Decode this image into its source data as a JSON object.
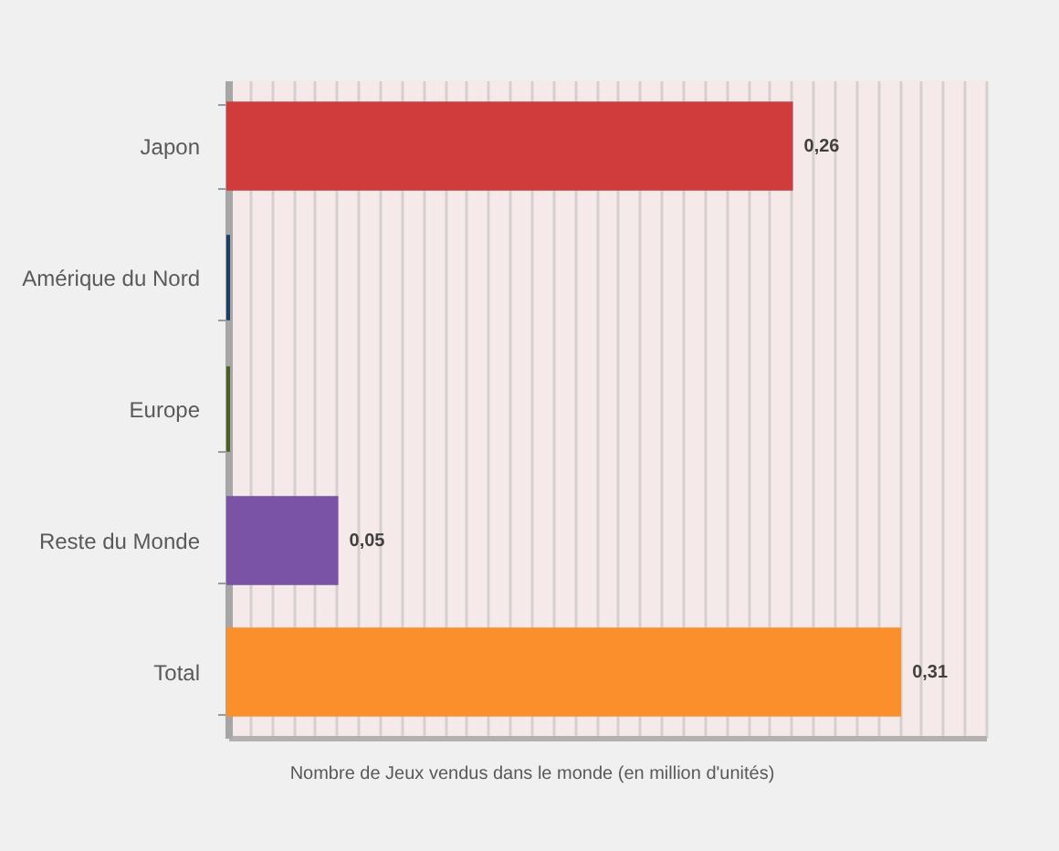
{
  "chart_data": {
    "type": "bar",
    "orientation": "horizontal",
    "categories": [
      "Japon",
      "Amérique du Nord",
      "Europe",
      "Reste du Monde",
      "Total"
    ],
    "values": [
      0.26,
      0,
      0,
      0.05,
      0.31
    ],
    "colors": [
      "#d03b3b",
      "#1c3d66",
      "#4a5f24",
      "#7a53a6",
      "#fb8f2b"
    ],
    "value_labels": [
      "0,26",
      null,
      null,
      "0,05",
      "0,31"
    ],
    "xlabel": "Nombre de Jeux vendus dans le monde (en million d'unités)",
    "xlim": [
      0,
      0.35
    ],
    "xticks": [
      {
        "value": 0,
        "label": null
      },
      {
        "value": 0.01,
        "label": null
      },
      {
        "value": 0.02,
        "label": null
      },
      {
        "value": 0.03,
        "label": null
      },
      {
        "value": 0.04,
        "label": null
      },
      {
        "value": 0.05,
        "label": null
      },
      {
        "value": 0.06,
        "label": null
      },
      {
        "value": 0.07,
        "label": null
      },
      {
        "value": 0.08,
        "label": null
      },
      {
        "value": 0.09,
        "label": null
      },
      {
        "value": 0.1,
        "label": null
      },
      {
        "value": 0.11,
        "label": null
      },
      {
        "value": 0.12,
        "label": null
      },
      {
        "value": 0.13,
        "label": null
      },
      {
        "value": 0.14,
        "label": null
      },
      {
        "value": 0.15,
        "label": null
      },
      {
        "value": 0.16,
        "label": null
      },
      {
        "value": 0.17,
        "label": null
      },
      {
        "value": 0.18,
        "label": null
      },
      {
        "value": 0.19,
        "label": null
      },
      {
        "value": 0.2,
        "label": null
      },
      {
        "value": 0.21,
        "label": null
      },
      {
        "value": 0.22,
        "label": null
      },
      {
        "value": 0.23,
        "label": null
      },
      {
        "value": 0.24,
        "label": null
      },
      {
        "value": 0.25,
        "label": null
      },
      {
        "value": 0.26,
        "label": null
      },
      {
        "value": 0.27,
        "label": null
      },
      {
        "value": 0.28,
        "label": null
      },
      {
        "value": 0.29,
        "label": null
      },
      {
        "value": 0.3,
        "label": null
      },
      {
        "value": 0.31,
        "label": null
      },
      {
        "value": 0.32,
        "label": null
      },
      {
        "value": 0.33,
        "label": null
      },
      {
        "value": 0.34,
        "label": null
      },
      {
        "value": 0.35,
        "label": null
      }
    ],
    "grid": "x",
    "tick_labels": "y"
  }
}
